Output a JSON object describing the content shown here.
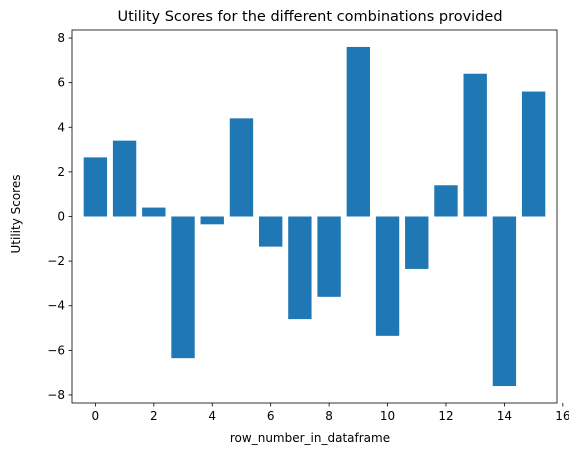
{
  "chart_data": {
    "type": "bar",
    "title": "Utility Scores for the different combinations provided",
    "xlabel": "row_number_in_dataframe",
    "ylabel": "Utility Scores",
    "x": [
      0,
      1,
      2,
      3,
      4,
      5,
      6,
      7,
      8,
      9,
      10,
      11,
      12,
      13,
      14,
      15
    ],
    "values": [
      2.65,
      3.4,
      0.4,
      -6.35,
      -0.35,
      4.4,
      -1.35,
      -4.6,
      -3.6,
      7.6,
      -5.35,
      -2.35,
      1.4,
      6.4,
      -7.6,
      5.6
    ],
    "xlim": [
      -0.8,
      15.8
    ],
    "ylim": [
      -8.36,
      8.36
    ],
    "xticks": [
      0,
      2,
      4,
      6,
      8,
      10,
      12,
      14,
      16
    ],
    "yticks": [
      -8,
      -6,
      -4,
      -2,
      0,
      2,
      4,
      6,
      8
    ],
    "bar_color": "#1f77b4",
    "grid": false,
    "legend": false
  }
}
